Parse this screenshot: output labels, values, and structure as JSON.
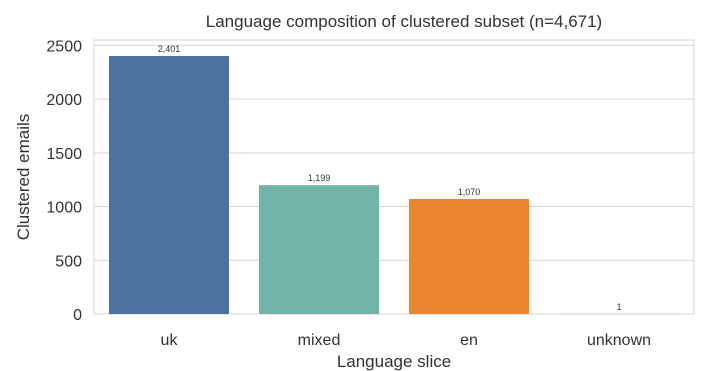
{
  "chart_data": {
    "type": "bar",
    "title": "Language composition of clustered subset (n=4,671)",
    "xlabel": "Language slice",
    "ylabel": "Clustered emails",
    "categories": [
      "uk",
      "mixed",
      "en",
      "unknown"
    ],
    "values": [
      2401,
      1199,
      1070,
      1
    ],
    "value_labels": [
      "2,401",
      "1,199",
      "1,070",
      "1"
    ],
    "colors": [
      "#4c72a3",
      "#72b5a8",
      "#e8852e",
      "#c44e52"
    ],
    "ylim": [
      0,
      2550
    ],
    "yticks": [
      0,
      500,
      1000,
      1500,
      2000,
      2500
    ],
    "grid": "horizontal",
    "legend": "none"
  }
}
